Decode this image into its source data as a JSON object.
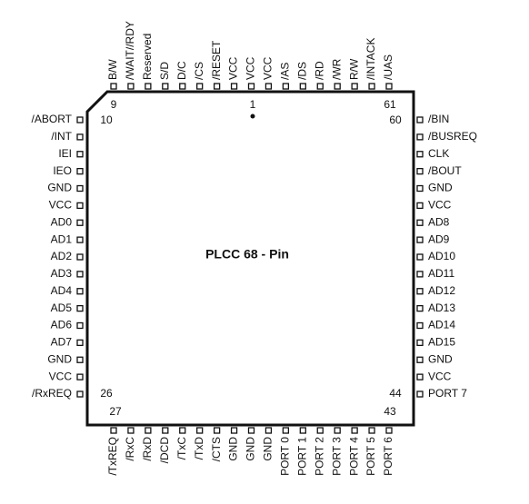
{
  "title": "PLCC 68 - Pin",
  "pins": {
    "top": [
      "B/W",
      "/WAIT//RDY",
      "Reserved",
      "S/D",
      "D/C",
      "/CS",
      "/RESET",
      "VCC",
      "VCC",
      "VCC",
      "/AS",
      "/DS",
      "/RD",
      "/WR",
      "R/W",
      "/INTACK",
      "/UAS"
    ],
    "left": [
      "/ABORT",
      "/INT",
      "IEI",
      "IEO",
      "GND",
      "VCC",
      "AD0",
      "AD1",
      "AD2",
      "AD3",
      "AD4",
      "AD5",
      "AD6",
      "AD7",
      "GND",
      "VCC",
      "/RxREQ"
    ],
    "right": [
      "/BIN",
      "/BUSREQ",
      "CLK",
      "/BOUT",
      "GND",
      "VCC",
      "AD8",
      "AD9",
      "AD10",
      "AD11",
      "AD12",
      "AD13",
      "AD14",
      "AD15",
      "GND",
      "VCC",
      "PORT 7"
    ],
    "bottom": [
      "/TxREQ",
      "/RxC",
      "/RxD",
      "/DCD",
      "/TxC",
      "/TxD",
      "/CTS",
      "GND",
      "GND",
      "GND",
      "PORT 0",
      "PORT 1",
      "PORT 2",
      "PORT 3",
      "PORT 4",
      "PORT 5",
      "PORT 6"
    ]
  },
  "pin_numbers": {
    "top_left": "9",
    "top_center": "1",
    "top_right": "61",
    "left_top": "10",
    "right_top": "60",
    "left_bottom": "26",
    "right_bottom": "44",
    "bottom_left": "27",
    "bottom_right": "43"
  }
}
